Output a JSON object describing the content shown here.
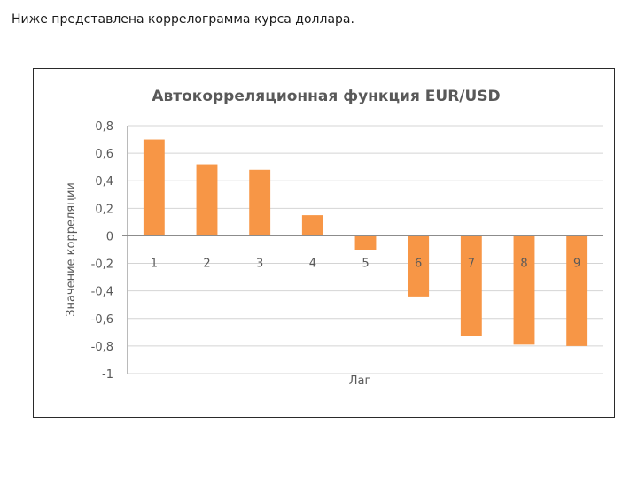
{
  "caption": "Ниже представлена коррелограмма курса доллара.",
  "chart_data": {
    "type": "bar",
    "title": "Автокорреляционная функция EUR/USD",
    "xlabel": "Лаг",
    "ylabel": "Значение корреляции",
    "categories": [
      "1",
      "2",
      "3",
      "4",
      "5",
      "6",
      "7",
      "8",
      "9"
    ],
    "values": [
      0.7,
      0.52,
      0.48,
      0.15,
      -0.1,
      -0.44,
      -0.73,
      -0.79,
      -0.8
    ],
    "ylim": [
      -1,
      0.8
    ],
    "yticks": [
      0.8,
      0.6,
      0.4,
      0.2,
      0,
      -0.2,
      -0.4,
      -0.6,
      -0.8,
      -1
    ],
    "ytick_labels": [
      "0,8",
      "0,6",
      "0,4",
      "0,2",
      "0",
      "-0,2",
      "-0,4",
      "-0,6",
      "-0,8",
      "-1"
    ],
    "grid": true,
    "legend": false,
    "colors": {
      "bar": "#f79646",
      "grid": "#d4d4d4",
      "axis": "#8c8c8c",
      "text": "#595959"
    }
  }
}
